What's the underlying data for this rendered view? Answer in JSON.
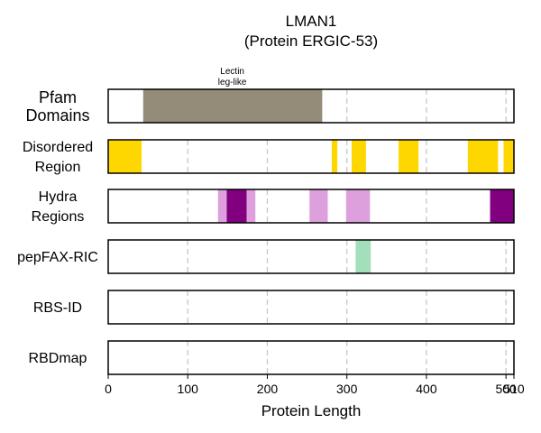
{
  "chart_data": {
    "type": "bar",
    "title": "LMAN1",
    "subtitle": "(Protein ERGIC-53)",
    "xlabel": "Protein Length",
    "xlim": [
      0,
      510
    ],
    "x_ticks": [
      0,
      100,
      200,
      300,
      400,
      500,
      510
    ],
    "x_tick_labels": [
      "0",
      "100",
      "200",
      "300",
      "400",
      "500",
      "510"
    ],
    "gridlines_x": [
      100,
      200,
      300,
      400,
      500
    ],
    "tracks": [
      {
        "label_lines": [
          "Pfam",
          "Domains"
        ],
        "segments": [
          {
            "start": 44,
            "end": 269,
            "color": "#948b79"
          }
        ],
        "annotations": [
          {
            "text_lines": [
              "Lectin",
              "leg-like"
            ],
            "x": 156
          }
        ]
      },
      {
        "label_lines": [
          "Disordered",
          "Region"
        ],
        "segments": [
          {
            "start": 0,
            "end": 42,
            "color": "#ffd700"
          },
          {
            "start": 281,
            "end": 288,
            "color": "#ffd700"
          },
          {
            "start": 306,
            "end": 324,
            "color": "#ffd700"
          },
          {
            "start": 365,
            "end": 390,
            "color": "#ffd700"
          },
          {
            "start": 452,
            "end": 490,
            "color": "#ffd700"
          },
          {
            "start": 497,
            "end": 510,
            "color": "#ffd700"
          }
        ],
        "annotations": []
      },
      {
        "label_lines": [
          "Hydra",
          "Regions"
        ],
        "segments": [
          {
            "start": 138,
            "end": 149,
            "color": "#dda0dd"
          },
          {
            "start": 149,
            "end": 174,
            "color": "#800080"
          },
          {
            "start": 174,
            "end": 185,
            "color": "#dda0dd"
          },
          {
            "start": 253,
            "end": 276,
            "color": "#dda0dd"
          },
          {
            "start": 299,
            "end": 329,
            "color": "#dda0dd"
          },
          {
            "start": 480,
            "end": 510,
            "color": "#800080"
          }
        ],
        "annotations": []
      },
      {
        "label_lines": [
          "pepFAX-RIC"
        ],
        "segments": [
          {
            "start": 311,
            "end": 330,
            "color": "#a3dfba"
          }
        ],
        "annotations": []
      },
      {
        "label_lines": [
          "RBS-ID"
        ],
        "segments": [],
        "annotations": []
      },
      {
        "label_lines": [
          "RBDmap"
        ],
        "segments": [],
        "annotations": []
      }
    ]
  }
}
